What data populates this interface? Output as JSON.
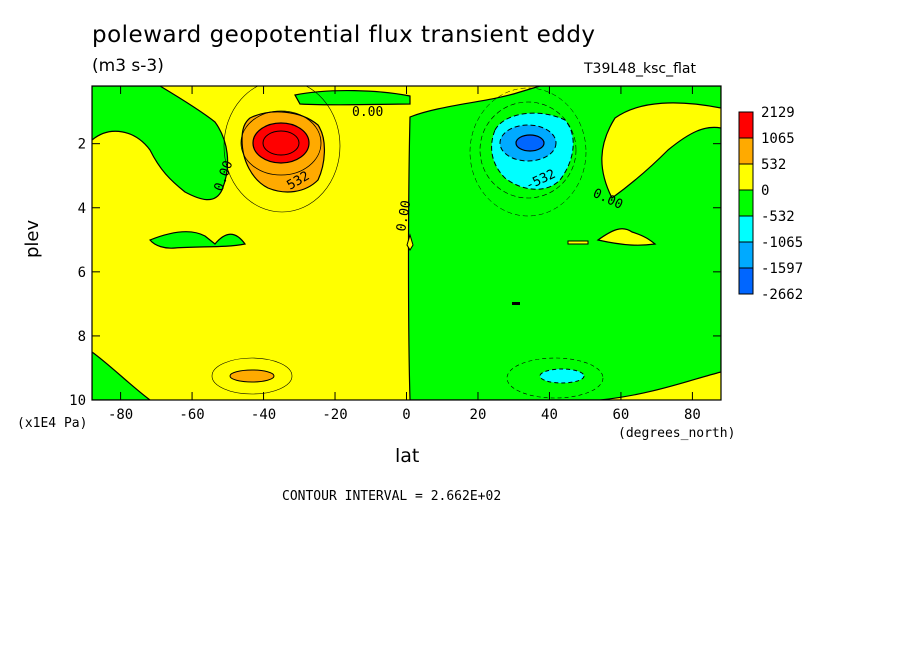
{
  "title": "poleward geopotential flux transient eddy",
  "units": "(m3 s-3)",
  "experiment": "T39L48_ksc_flat",
  "chart_data": {
    "type": "contour",
    "xlabel": "lat",
    "xunits": "(degrees_north)",
    "ylabel": "plev",
    "yunits": "(x1E4 Pa)",
    "xlim": [
      -88,
      88
    ],
    "ylim": [
      10,
      0.2
    ],
    "x_ticks": [
      -80,
      -60,
      -40,
      -20,
      0,
      20,
      40,
      60,
      80
    ],
    "y_ticks": [
      2,
      4,
      6,
      8,
      10
    ],
    "contour_interval": "CONTOUR INTERVAL = 2.662E+02",
    "contour_labels": [
      "0.00",
      "0.00",
      "0.00",
      "0.00",
      "532",
      "-532"
    ],
    "colorbar": {
      "labels": [
        "2129",
        "1065",
        "532",
        "0",
        "-532",
        "-1065",
        "-1597",
        "-2662"
      ],
      "colors": [
        "#ff0000",
        "#ffaa00",
        "#ffff00",
        "#00ff00",
        "#00ffff",
        "#00aaff",
        "#0066ff"
      ]
    },
    "features": [
      {
        "kind": "max",
        "lat": -35,
        "plev": 2.0,
        "value": 2129
      },
      {
        "kind": "min",
        "lat": 35,
        "plev": 2.0,
        "value": -2662
      }
    ]
  }
}
